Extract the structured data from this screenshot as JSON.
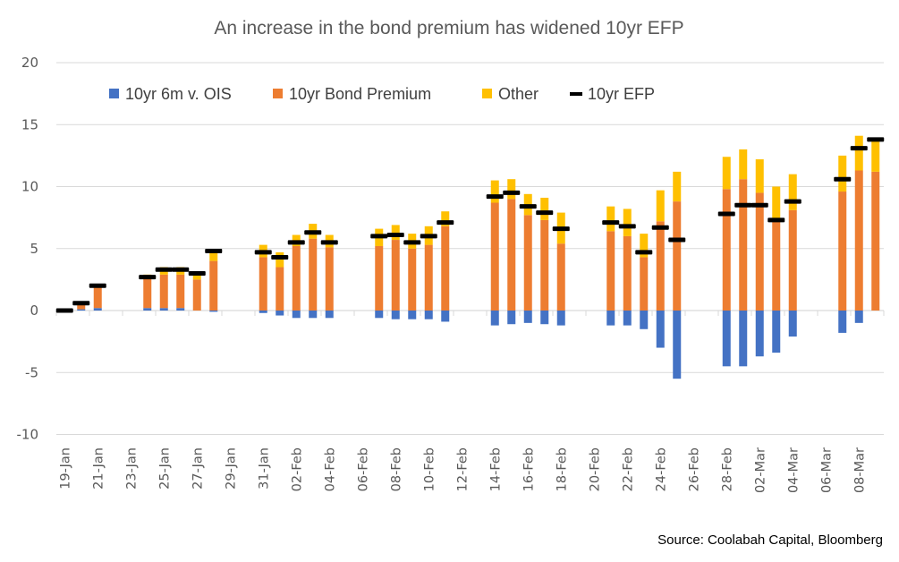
{
  "chart_data": {
    "type": "bar",
    "stacked": true,
    "title": "An increase in the bond premium has widened 10yr EFP",
    "xlabel": "",
    "ylabel": "",
    "ylim": [
      -10,
      20
    ],
    "yticks": [
      -10,
      -5,
      0,
      5,
      10,
      15,
      20
    ],
    "grid": true,
    "legend_position": "top",
    "source": "Source: Coolabah Capital, Bloomberg",
    "x_tick_labels": [
      "19-Jan",
      "21-Jan",
      "23-Jan",
      "25-Jan",
      "27-Jan",
      "29-Jan",
      "31-Jan",
      "02-Feb",
      "04-Feb",
      "06-Feb",
      "08-Feb",
      "10-Feb",
      "12-Feb",
      "14-Feb",
      "16-Feb",
      "18-Feb",
      "20-Feb",
      "22-Feb",
      "24-Feb",
      "26-Feb",
      "28-Feb",
      "02-Mar",
      "04-Mar",
      "06-Mar",
      "08-Mar"
    ],
    "x_start_date": "19-Jan",
    "x_day_count": 50,
    "categories": [
      "19-Jan",
      "20-Jan",
      "21-Jan",
      "24-Jan",
      "25-Jan",
      "26-Jan",
      "27-Jan",
      "28-Jan",
      "31-Jan",
      "01-Feb",
      "02-Feb",
      "03-Feb",
      "04-Feb",
      "07-Feb",
      "08-Feb",
      "09-Feb",
      "10-Feb",
      "11-Feb",
      "14-Feb",
      "15-Feb",
      "16-Feb",
      "17-Feb",
      "18-Feb",
      "21-Feb",
      "22-Feb",
      "23-Feb",
      "24-Feb",
      "25-Feb",
      "28-Feb",
      "01-Mar",
      "02-Mar",
      "03-Mar",
      "04-Mar",
      "07-Mar",
      "08-Mar",
      "09-Mar"
    ],
    "day_offsets": [
      0,
      1,
      2,
      5,
      6,
      7,
      8,
      9,
      12,
      13,
      14,
      15,
      16,
      19,
      20,
      21,
      22,
      23,
      26,
      27,
      28,
      29,
      30,
      33,
      34,
      35,
      36,
      37,
      40,
      41,
      42,
      43,
      44,
      47,
      48,
      49
    ],
    "series": [
      {
        "name": "10yr 6m v. OIS",
        "color": "#4472C4",
        "kind": "bar",
        "values": [
          0,
          0.1,
          0.2,
          0.2,
          0.2,
          0.2,
          0,
          -0.1,
          -0.2,
          -0.4,
          -0.6,
          -0.6,
          -0.6,
          -0.6,
          -0.7,
          -0.7,
          -0.7,
          -0.9,
          -1.2,
          -1.1,
          -1.0,
          -1.1,
          -1.2,
          -1.2,
          -1.2,
          -1.5,
          -3.0,
          -5.5,
          -4.5,
          -4.5,
          -3.7,
          -3.4,
          -2.1,
          -1.8,
          -1.0,
          0
        ]
      },
      {
        "name": "10yr Bond Premium",
        "color": "#ED7D31",
        "kind": "bar",
        "values": [
          0,
          0.4,
          1.8,
          2.5,
          2.7,
          2.7,
          2.5,
          4.0,
          4.3,
          3.5,
          5.2,
          5.8,
          5.1,
          5.2,
          5.7,
          5.0,
          5.3,
          6.8,
          8.7,
          9.0,
          7.7,
          7.3,
          5.4,
          6.4,
          6.0,
          4.3,
          7.2,
          8.8,
          9.8,
          10.6,
          9.5,
          7.2,
          8.1,
          9.6,
          11.3,
          11.2
        ]
      },
      {
        "name": "Other",
        "color": "#FFC000",
        "kind": "bar",
        "values": [
          0,
          0,
          0,
          0.2,
          0.6,
          0.6,
          0.5,
          0.8,
          1.0,
          1.2,
          0.9,
          1.2,
          1.0,
          1.4,
          1.2,
          1.2,
          1.5,
          1.2,
          1.8,
          1.6,
          1.7,
          1.8,
          2.5,
          2.0,
          2.2,
          1.9,
          2.5,
          2.4,
          2.6,
          2.4,
          2.7,
          2.8,
          2.9,
          2.9,
          2.8,
          2.5
        ]
      },
      {
        "name": "10yr EFP",
        "color": "#000000",
        "kind": "marker-dash",
        "values": [
          0,
          0.6,
          2.0,
          2.7,
          3.3,
          3.3,
          3.0,
          4.8,
          4.7,
          4.3,
          5.5,
          6.3,
          5.5,
          6.0,
          6.1,
          5.5,
          6.0,
          7.1,
          9.2,
          9.5,
          8.4,
          7.9,
          6.6,
          7.1,
          6.8,
          4.7,
          6.7,
          5.7,
          7.8,
          8.5,
          8.5,
          7.3,
          8.8,
          10.6,
          13.1,
          13.8
        ]
      }
    ]
  }
}
